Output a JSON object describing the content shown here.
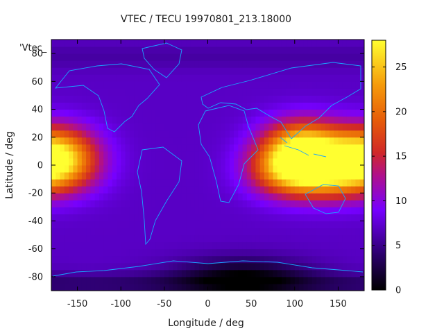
{
  "chart_data": {
    "type": "heatmap",
    "title": "VTEC / TECU 19970801_213.18000",
    "xlabel": "Longitude / deg",
    "ylabel": "Latitude / deg",
    "key_label": "'Vtec_",
    "xlim": [
      -180,
      180
    ],
    "ylim": [
      -90,
      90
    ],
    "xticks": [
      -150,
      -100,
      -50,
      0,
      50,
      100,
      150
    ],
    "yticks": [
      -80,
      -60,
      -40,
      -20,
      0,
      20,
      40,
      60,
      80
    ],
    "colorbar": {
      "min": 0,
      "max": 28,
      "ticks": [
        0,
        5,
        10,
        15,
        20,
        25
      ]
    },
    "grid": false,
    "peaks": [
      {
        "region": "east-hemisphere equatorial anomaly north",
        "lon": 110,
        "lat": 15,
        "value": 23
      },
      {
        "region": "east-hemisphere equatorial anomaly south",
        "lon": 95,
        "lat": -3,
        "value": 24
      },
      {
        "region": "east-hemisphere southern band",
        "lon": 140,
        "lat": -5,
        "value": 20
      },
      {
        "region": "date-line anomaly north",
        "lon": -175,
        "lat": 12,
        "value": 20
      },
      {
        "region": "date-line anomaly south",
        "lon": -172,
        "lat": -3,
        "value": 19
      },
      {
        "region": "polar trough",
        "lon": 40,
        "lat": -80,
        "value": 1
      }
    ],
    "background_value": 7,
    "overlay": "continent coastlines"
  }
}
